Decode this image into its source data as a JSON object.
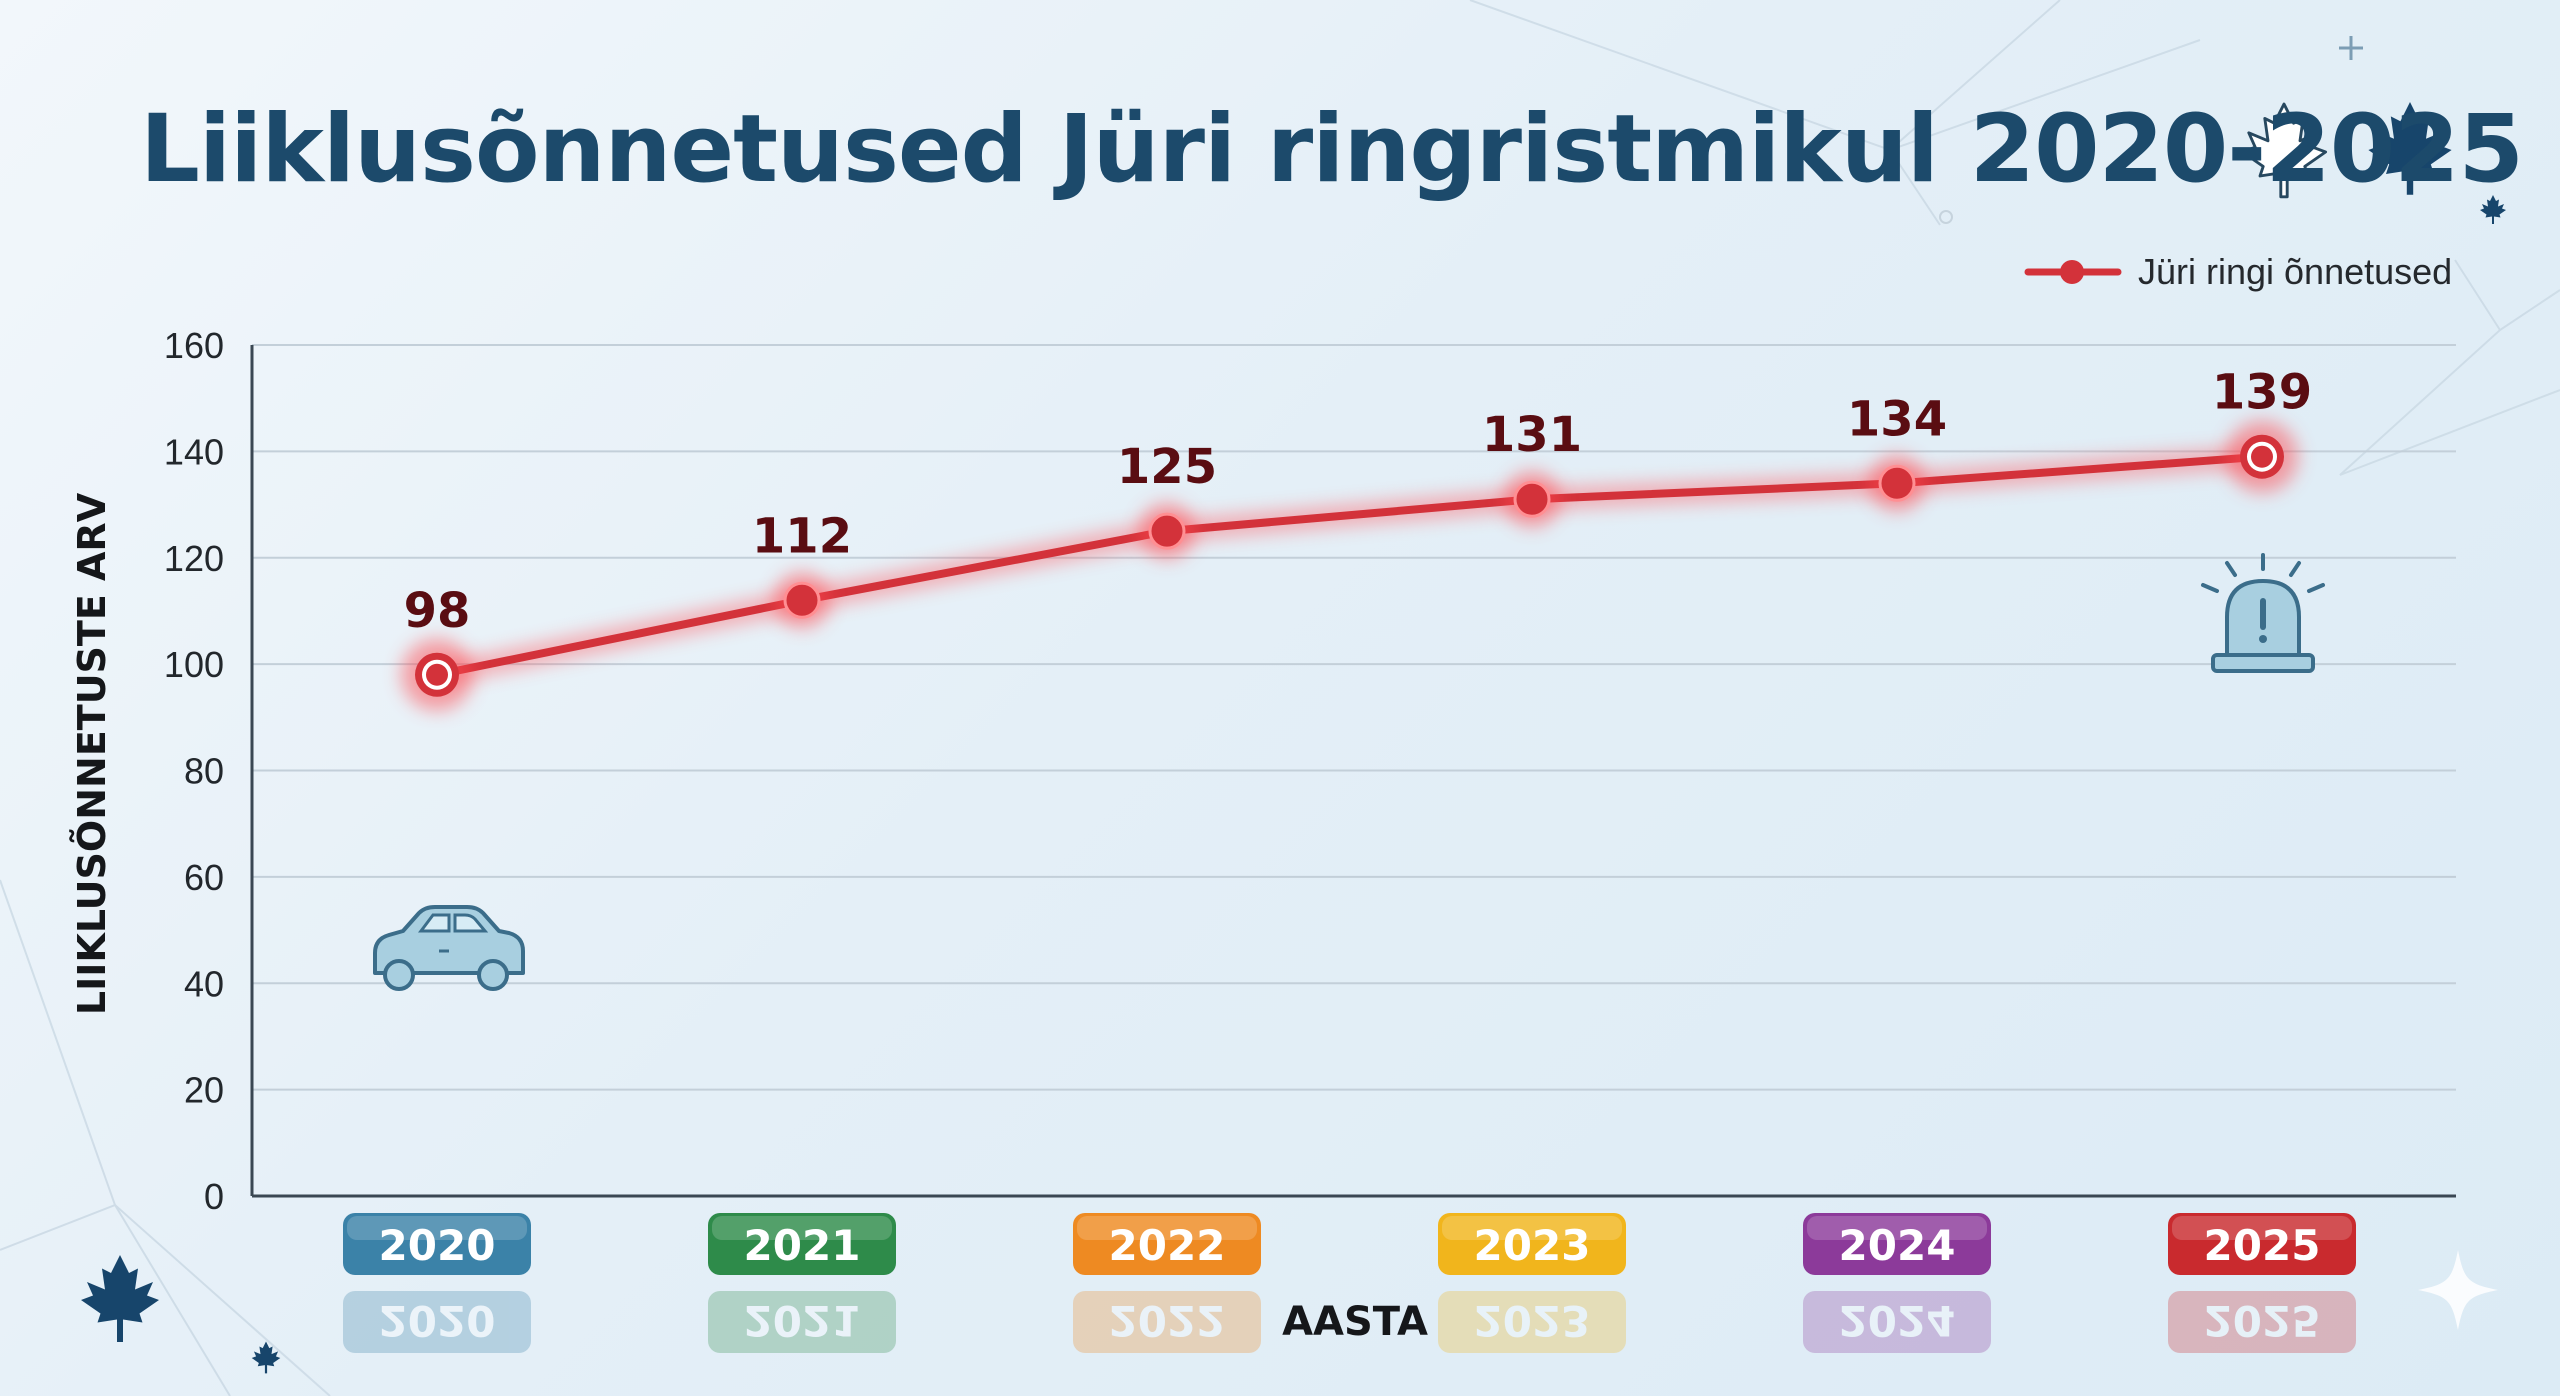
{
  "chart_data": {
    "type": "line",
    "title": "Liiklusõnnetused Jüri ringristmikul 2020-2025",
    "xlabel": "AASTA",
    "ylabel": "LIIKLUSÕNNETUSTE ARV",
    "categories": [
      "2020",
      "2021",
      "2022",
      "2023",
      "2024",
      "2025"
    ],
    "series": [
      {
        "name": "Jüri ringi õnnetused",
        "values": [
          98,
          112,
          125,
          131,
          134,
          139
        ],
        "color": "#d3323a"
      }
    ],
    "ylim": [
      0,
      160
    ],
    "yticks": [
      0,
      20,
      40,
      60,
      80,
      100,
      120,
      140,
      160
    ],
    "grid": true,
    "legend_position": "top-right",
    "year_badge_colors": [
      "#3b82a8",
      "#2e8b4a",
      "#ee8a22",
      "#f1b51c",
      "#8c3a9a",
      "#c92a2e"
    ]
  },
  "icons": {
    "car": "car-icon",
    "alarm": "siren-icon",
    "decor": [
      "maple-leaf-outline-icon",
      "maple-leaf-icon",
      "sparkle-icon"
    ]
  }
}
